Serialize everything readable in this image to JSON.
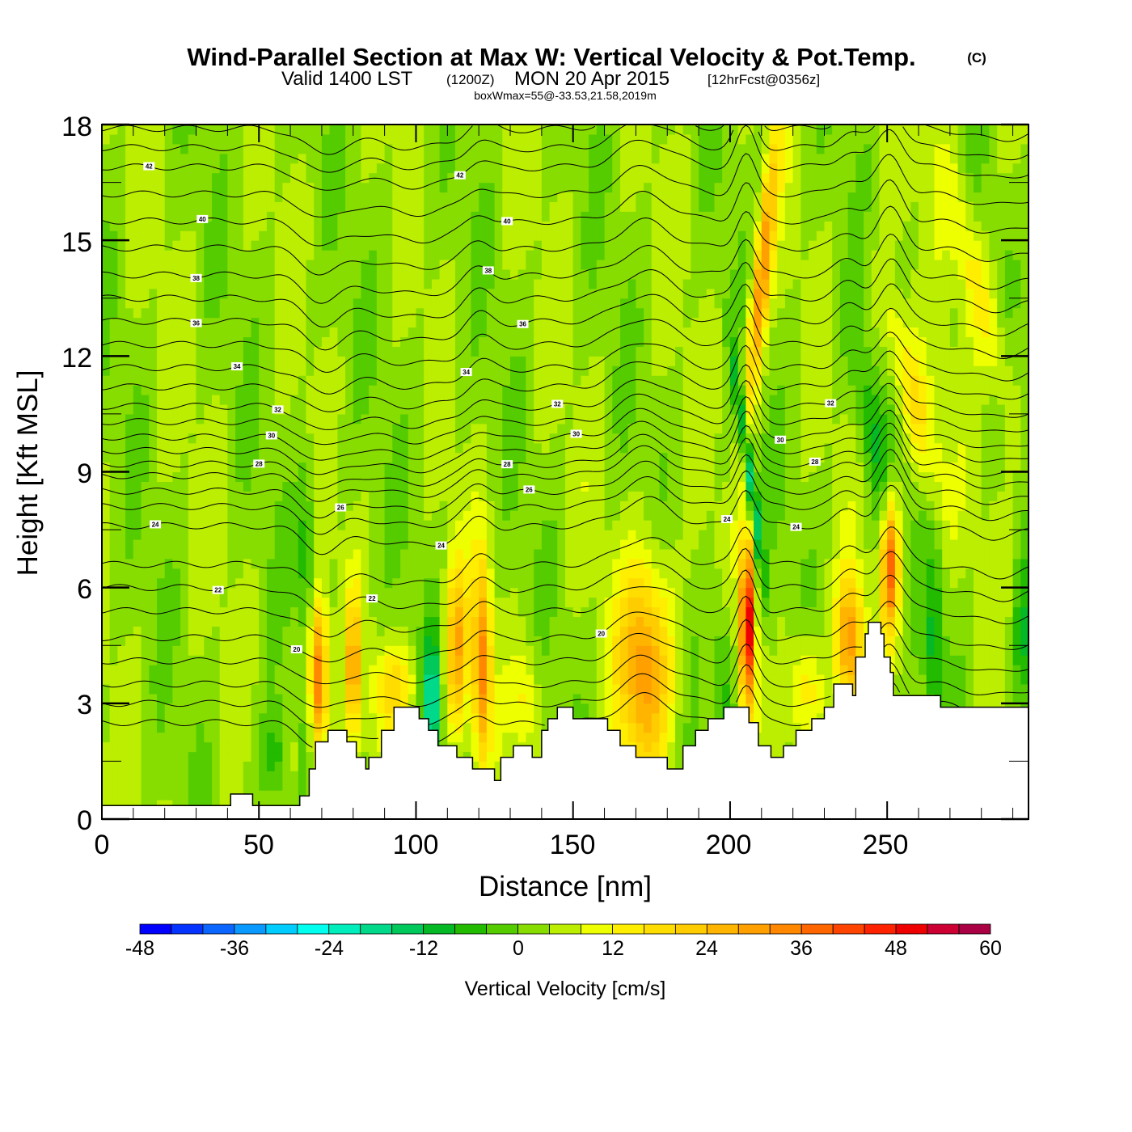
{
  "header": {
    "title": "Wind-Parallel Section at Max W: Vertical Velocity & Pot.Temp.",
    "copyright": "(C)",
    "valid_prefix": "Valid 1400 LST",
    "valid_utc": "(1200Z)",
    "valid_date": "MON 20 Apr 2015",
    "forecast": "[12hrFcst@0356z]",
    "box_wmax": "boxWmax=55@-33.53,21.58,2019m"
  },
  "chart_data": {
    "type": "heatmap",
    "title": "Wind-Parallel Section at Max W: Vertical Velocity & Pot.Temp.",
    "xlabel": "Distance [nm]",
    "ylabel": "Height [Kft MSL]",
    "xlim": [
      0,
      295
    ],
    "ylim": [
      0,
      18
    ],
    "xticks": [
      "0",
      "50",
      "100",
      "150",
      "200",
      "250"
    ],
    "yticks": [
      "0",
      "3",
      "6",
      "9",
      "12",
      "15",
      "18"
    ],
    "colorbar": {
      "label": "Vertical Velocity [cm/s]",
      "min": -48,
      "max": 60,
      "step": 4,
      "tick_labels": [
        "-48",
        "-36",
        "-24",
        "-12",
        "0",
        "12",
        "24",
        "36",
        "48",
        "60"
      ],
      "colors": [
        "#0000ff",
        "#0533ff",
        "#0a66ff",
        "#0a99ff",
        "#00ccff",
        "#00ffee",
        "#00eebb",
        "#00d98a",
        "#00c85a",
        "#05b825",
        "#22bb00",
        "#55cc00",
        "#88dd00",
        "#bbee00",
        "#eeff00",
        "#ffee00",
        "#ffdd00",
        "#ffcc00",
        "#ffb400",
        "#ffa000",
        "#ff8800",
        "#ff6600",
        "#ff4400",
        "#ff2200",
        "#ee0000",
        "#cc0033",
        "#aa0044"
      ]
    },
    "background_w": 3,
    "w_features": [
      {
        "x": 69,
        "z": 3.6,
        "w": 36,
        "sx": 2,
        "sz": 1.4,
        "tilt": 0
      },
      {
        "x": 80,
        "z": 4.0,
        "w": 28,
        "sx": 1.3,
        "sz": 1.3,
        "tilt": 0
      },
      {
        "x": 93,
        "z": 3.4,
        "w": 14,
        "sx": 5,
        "sz": 0.8,
        "tilt": 0
      },
      {
        "x": 113,
        "z": 4.4,
        "w": 24,
        "sx": 2.5,
        "sz": 1.6,
        "tilt": 0
      },
      {
        "x": 121,
        "z": 4.0,
        "w": 30,
        "sx": 2,
        "sz": 1.9,
        "tilt": 0
      },
      {
        "x": 135,
        "z": 3.2,
        "w": 10,
        "sx": 3,
        "sz": 1,
        "tilt": 0
      },
      {
        "x": 173,
        "z": 4.0,
        "w": 28,
        "sx": 6,
        "sz": 1.9,
        "tilt": 0
      },
      {
        "x": 205.5,
        "z": 5.0,
        "w": 52,
        "sx": 1.5,
        "sz": 1.5,
        "tilt": 0
      },
      {
        "x": 210,
        "z": 14.0,
        "w": 30,
        "sx": 2,
        "sz": 2.5,
        "tilt": 1.2
      },
      {
        "x": 224,
        "z": 3.4,
        "w": 14,
        "sx": 4,
        "sz": 1,
        "tilt": 0
      },
      {
        "x": 238,
        "z": 4.6,
        "w": 28,
        "sx": 3,
        "sz": 1.2,
        "tilt": 0
      },
      {
        "x": 251,
        "z": 6.6,
        "w": 38,
        "sx": 2,
        "sz": 1.2,
        "tilt": 0
      },
      {
        "x": 258,
        "z": 11,
        "w": 14,
        "sx": 4,
        "sz": 2,
        "tilt": -3
      },
      {
        "x": 278,
        "z": 14,
        "w": 12,
        "sx": 4,
        "sz": 2.5,
        "tilt": -3
      },
      {
        "x": 60,
        "z": 1.5,
        "w": 12,
        "sx": 1,
        "sz": 0.8,
        "tilt": 0
      },
      {
        "x": 105,
        "z": 3.0,
        "w": -24,
        "sx": 1.8,
        "sz": 1.2,
        "tilt": 0
      },
      {
        "x": 206,
        "z": 9.0,
        "w": -24,
        "sx": 1.2,
        "sz": 2,
        "tilt": -1.6
      },
      {
        "x": 265,
        "z": 4.5,
        "w": -12,
        "sx": 2,
        "sz": 1.5,
        "tilt": 0
      },
      {
        "x": 293,
        "z": 4.5,
        "w": -12,
        "sx": 2,
        "sz": 1.5,
        "tilt": 0
      },
      {
        "x": 55,
        "z": 1.5,
        "w": -10,
        "sx": 4,
        "sz": 1,
        "tilt": 0
      },
      {
        "x": 65,
        "z": 7,
        "w": -10,
        "sx": 2,
        "sz": 1.5,
        "tilt": 0
      },
      {
        "x": 198,
        "z": 3.5,
        "w": -10,
        "sx": 2.5,
        "sz": 1.5,
        "tilt": 0
      },
      {
        "x": 245,
        "z": 10,
        "w": -10,
        "sx": 3,
        "sz": 2,
        "tilt": -2
      }
    ],
    "terrain": [
      [
        0,
        0.35
      ],
      [
        41,
        0.65
      ],
      [
        48,
        0.35
      ],
      [
        63,
        0.6
      ],
      [
        66,
        1.3
      ],
      [
        68,
        2.0
      ],
      [
        72,
        2.3
      ],
      [
        78,
        2.0
      ],
      [
        81,
        1.6
      ],
      [
        84,
        1.3
      ],
      [
        85,
        1.6
      ],
      [
        89,
        2.3
      ],
      [
        93,
        2.9
      ],
      [
        101,
        2.6
      ],
      [
        104,
        2.3
      ],
      [
        107,
        1.9
      ],
      [
        113,
        1.6
      ],
      [
        118,
        1.3
      ],
      [
        125,
        1.0
      ],
      [
        127,
        1.6
      ],
      [
        131,
        1.9
      ],
      [
        137,
        1.6
      ],
      [
        140,
        2.3
      ],
      [
        142,
        2.6
      ],
      [
        145,
        2.9
      ],
      [
        150,
        2.6
      ],
      [
        161,
        2.3
      ],
      [
        165,
        1.9
      ],
      [
        170,
        1.6
      ],
      [
        180,
        1.3
      ],
      [
        185,
        1.9
      ],
      [
        189,
        2.3
      ],
      [
        193,
        2.6
      ],
      [
        198,
        2.9
      ],
      [
        206,
        2.5
      ],
      [
        209,
        1.9
      ],
      [
        213,
        1.6
      ],
      [
        217,
        1.9
      ],
      [
        221,
        2.3
      ],
      [
        226,
        2.6
      ],
      [
        230,
        2.9
      ],
      [
        233,
        3.5
      ],
      [
        239,
        3.2
      ],
      [
        240,
        4.2
      ],
      [
        243,
        4.8
      ],
      [
        244,
        5.1
      ],
      [
        248,
        4.8
      ],
      [
        249,
        4.2
      ],
      [
        251,
        3.8
      ],
      [
        252,
        3.2
      ],
      [
        267,
        2.9
      ]
    ],
    "theta_levels": [
      [
        16,
        2.5
      ],
      [
        17,
        3.0
      ],
      [
        18,
        3.5
      ],
      [
        19,
        4.1
      ],
      [
        20,
        4.7
      ],
      [
        21,
        5.4
      ],
      [
        22,
        6.0
      ],
      [
        23,
        6.6
      ],
      [
        24,
        7.6
      ],
      [
        25,
        8.1
      ],
      [
        26,
        8.5
      ],
      [
        27,
        8.9
      ],
      [
        28,
        9.2
      ],
      [
        29,
        9.55
      ],
      [
        30,
        9.9
      ],
      [
        31,
        10.3
      ],
      [
        32,
        10.7
      ],
      [
        33,
        11.2
      ],
      [
        34,
        11.7
      ],
      [
        35,
        12.3
      ],
      [
        36,
        12.9
      ],
      [
        37,
        13.5
      ],
      [
        38,
        14.1
      ],
      [
        39,
        14.8
      ],
      [
        40,
        15.5
      ],
      [
        41,
        16.2
      ],
      [
        42,
        16.9
      ],
      [
        43,
        17.4
      ],
      [
        44,
        17.9
      ]
    ],
    "theta_labels": [
      {
        "text": "42",
        "theta": 42,
        "x": 15
      },
      {
        "text": "42",
        "theta": 42,
        "x": 114
      },
      {
        "text": "40",
        "theta": 40,
        "x": 32
      },
      {
        "text": "40",
        "theta": 40,
        "x": 129
      },
      {
        "text": "38",
        "theta": 38,
        "x": 30
      },
      {
        "text": "38",
        "theta": 38,
        "x": 123
      },
      {
        "text": "36",
        "theta": 36,
        "x": 30
      },
      {
        "text": "36",
        "theta": 36,
        "x": 134
      },
      {
        "text": "34",
        "theta": 34,
        "x": 43
      },
      {
        "text": "34",
        "theta": 34,
        "x": 116
      },
      {
        "text": "32",
        "theta": 32,
        "x": 56
      },
      {
        "text": "32",
        "theta": 32,
        "x": 145
      },
      {
        "text": "32",
        "theta": 32,
        "x": 232
      },
      {
        "text": "30",
        "theta": 30,
        "x": 54
      },
      {
        "text": "30",
        "theta": 30,
        "x": 151
      },
      {
        "text": "30",
        "theta": 30,
        "x": 216
      },
      {
        "text": "28",
        "theta": 28,
        "x": 50
      },
      {
        "text": "28",
        "theta": 28,
        "x": 129
      },
      {
        "text": "28",
        "theta": 28,
        "x": 227
      },
      {
        "text": "26",
        "theta": 26,
        "x": 76
      },
      {
        "text": "26",
        "theta": 26,
        "x": 136
      },
      {
        "text": "24",
        "theta": 24,
        "x": 17
      },
      {
        "text": "24",
        "theta": 24,
        "x": 108
      },
      {
        "text": "24",
        "theta": 24,
        "x": 199
      },
      {
        "text": "24",
        "theta": 24,
        "x": 221
      },
      {
        "text": "22",
        "theta": 22,
        "x": 37
      },
      {
        "text": "22",
        "theta": 22,
        "x": 86
      },
      {
        "text": "20",
        "theta": 20,
        "x": 62
      },
      {
        "text": "20",
        "theta": 20,
        "x": 159
      }
    ]
  }
}
